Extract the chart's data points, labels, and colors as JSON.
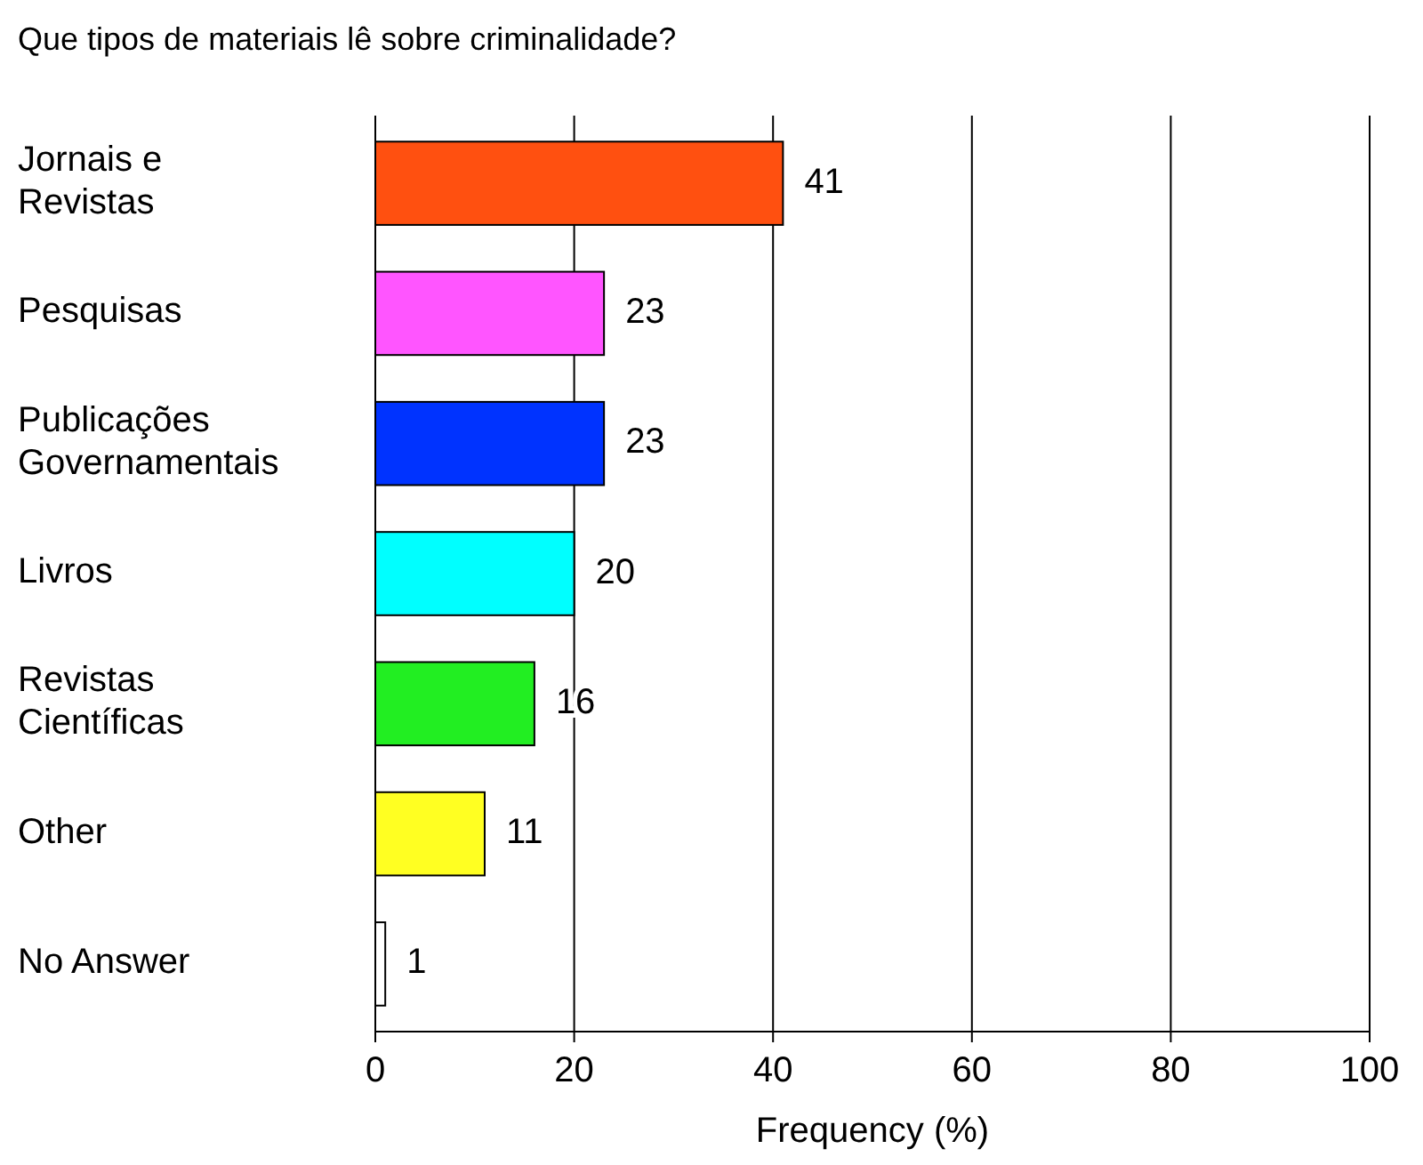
{
  "chart_data": {
    "type": "bar",
    "orientation": "horizontal",
    "title": "Que tipos de materiais lê sobre criminalidade?",
    "xlabel": "Frequency (%)",
    "categories": [
      "Jornais e Revistas",
      "Pesquisas",
      "Publicações Governamentais",
      "Livros",
      "Revistas Científicas",
      "Other",
      "No Answer"
    ],
    "values": [
      41,
      23,
      23,
      20,
      16,
      11,
      1
    ],
    "colors": [
      "#ff5010",
      "#ff55ff",
      "#0033ff",
      "#00ffff",
      "#22ee22",
      "#ffff22",
      "#ffffff"
    ],
    "xlim": [
      0,
      100
    ],
    "xticks": [
      0,
      20,
      40,
      60,
      80,
      100
    ],
    "grid": "x",
    "data_labels": true
  }
}
